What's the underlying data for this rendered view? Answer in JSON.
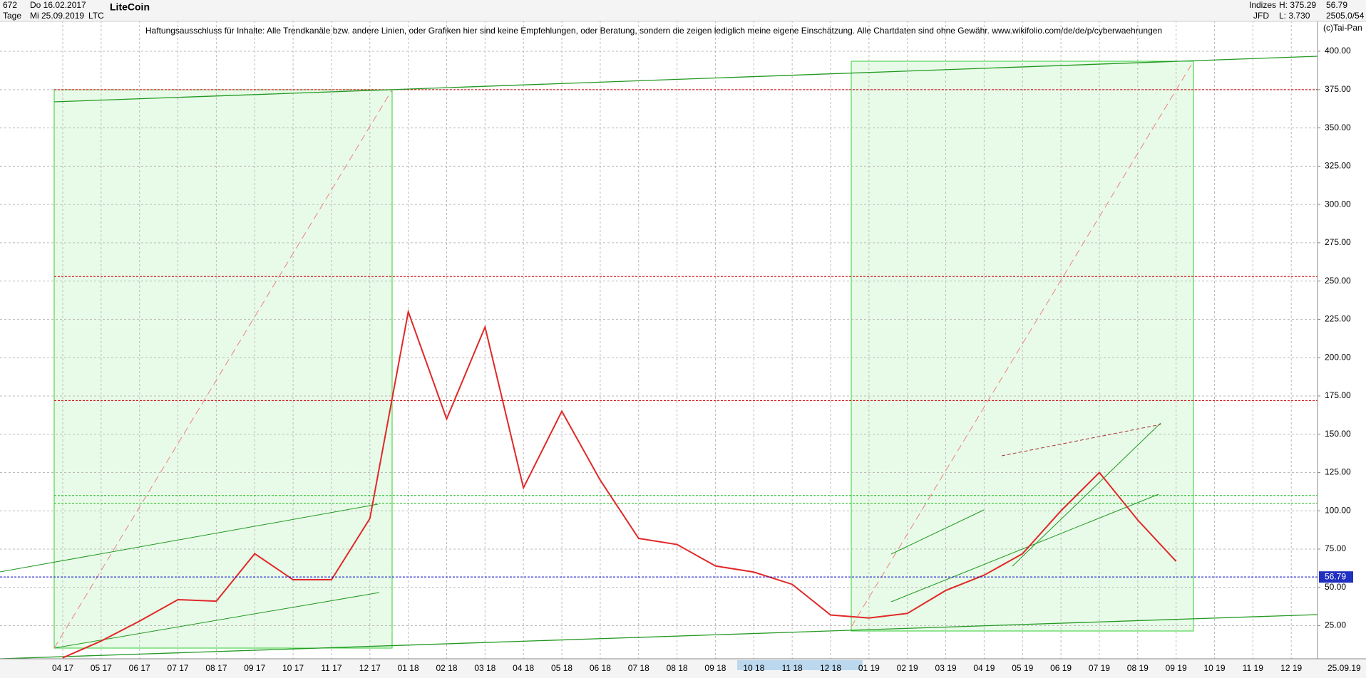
{
  "header": {
    "count": "672",
    "start_date": "Do 16.02.2017",
    "period": "Tage",
    "end_date": "Mi 25.09.2019",
    "instrument": "LiteCoin",
    "symbol": "LTC",
    "market": "Indizes",
    "broker": "JFD",
    "high": "H: 375.29",
    "low": "L: 3.730",
    "last": "56.79",
    "info": "2505.0/54",
    "copyright": "(c)Tai-Pan",
    "disclaimer": "Haftungsausschluss für Inhalte: Alle Trendkanäle bzw. andere Linien, oder Grafiken hier sind keine Empfehlungen, oder Beratung, sondern die zeigen lediglich meine eigene Einschätzung. Alle Chartdaten sind ohne Gewähr.  www.wikifolio.com/de/de/p/cyberwaehrungen"
  },
  "chart_data": {
    "type": "line",
    "categories": [
      "04 17",
      "05 17",
      "06 17",
      "07 17",
      "08 17",
      "09 17",
      "10 17",
      "11 17",
      "12 17",
      "01 18",
      "02 18",
      "03 18",
      "04 18",
      "05 18",
      "06 18",
      "07 18",
      "08 18",
      "09 18",
      "10 18",
      "11 18",
      "12 18",
      "01 19",
      "02 19",
      "03 19",
      "04 19",
      "05 19",
      "06 19",
      "07 19",
      "08 19",
      "09 19",
      "10 19",
      "11 19",
      "12 19"
    ],
    "values": [
      4,
      15,
      28,
      42,
      41,
      72,
      55,
      55,
      95,
      230,
      160,
      220,
      115,
      165,
      120,
      82,
      78,
      64,
      60,
      52,
      32,
      30,
      33,
      48,
      58,
      72,
      100,
      125,
      94,
      67,
      null,
      null,
      null
    ],
    "color": "#e02828",
    "current_price": {
      "value": 56.79,
      "label": "56.79"
    },
    "date_marker": "25.09.19",
    "reference_lines": [
      {
        "value": 375,
        "color": "#d00000"
      },
      {
        "value": 253,
        "color": "#d00000"
      },
      {
        "value": 172,
        "color": "#d00000"
      },
      {
        "value": 110,
        "color": "#22bb22"
      },
      {
        "value": 105,
        "color": "#22bb22"
      }
    ],
    "ylim": [
      3.4,
      425.6
    ],
    "yticks": [
      {
        "value": 25,
        "label": "25.00"
      },
      {
        "value": 50,
        "label": "50.00"
      },
      {
        "value": 75,
        "label": "75.00"
      },
      {
        "value": 100,
        "label": "100.00"
      },
      {
        "value": 125,
        "label": "125.00"
      },
      {
        "value": 150,
        "label": "150.00"
      },
      {
        "value": 175,
        "label": "175.00"
      },
      {
        "value": 200,
        "label": "200.00"
      },
      {
        "value": 225,
        "label": "225.00"
      },
      {
        "value": 250,
        "label": "250.00"
      },
      {
        "value": 275,
        "label": "275.00"
      },
      {
        "value": 300,
        "label": "300.00"
      },
      {
        "value": 325,
        "label": "325.00"
      },
      {
        "value": 350,
        "label": "350.00"
      },
      {
        "value": 375,
        "label": "375.00"
      },
      {
        "value": 400,
        "label": "400.00"
      }
    ],
    "grid": true
  }
}
